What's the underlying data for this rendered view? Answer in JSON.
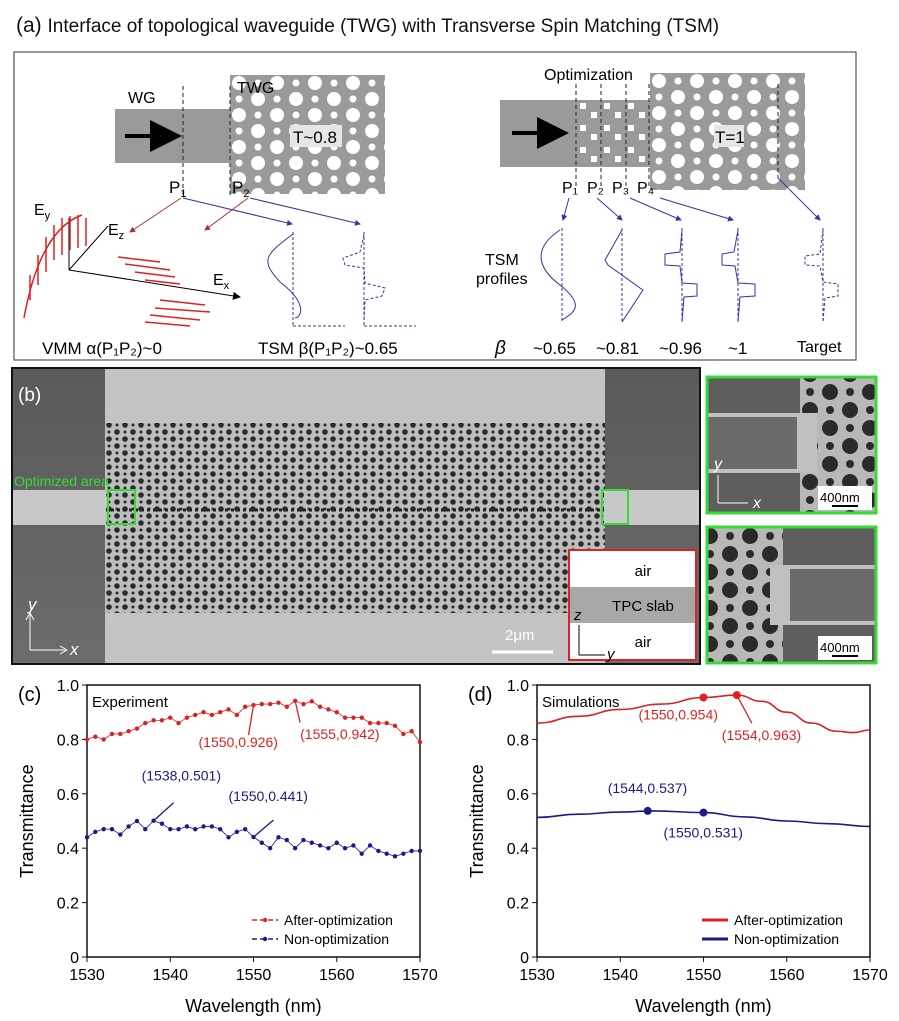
{
  "panel_a": {
    "label": "(a)",
    "title": "Interface of topological waveguide (TWG) with Transverse Spin Matching (TSM)",
    "left": {
      "wg_label": "WG",
      "twg_label": "TWG",
      "transmission": "T~0.8",
      "p1": "P",
      "p1_sub": "1",
      "p2": "P",
      "p2_sub": "2",
      "ey": "E",
      "ey_sub": "y",
      "ez": "E",
      "ez_sub": "z",
      "ex": "E",
      "ex_sub": "x",
      "vmm": "VMM α(P₁P₂)~0",
      "tsm": "TSM β(P₁P₂)~0.65"
    },
    "right": {
      "optimization_label": "Optimization",
      "transmission": "T=1",
      "ports": [
        "P₁",
        "P₂",
        "P₃",
        "P₄"
      ],
      "tsm_profiles": [
        "TSM",
        "profiles"
      ],
      "beta_symbol": "β",
      "beta_values": [
        "~0.65",
        "~0.81",
        "~0.96",
        "~1"
      ],
      "target_label": "Target"
    }
  },
  "panel_b": {
    "label": "(b)",
    "optimized_area_label": "Optimized area",
    "axis_y": "y",
    "axis_x": "x",
    "scale_bar": "2μm",
    "cross_section": {
      "top": "air",
      "middle": "TPC slab",
      "bottom": "air",
      "axis_z": "z",
      "axis_y": "y"
    },
    "inset_top": {
      "scale_bar": "400nm",
      "axis_y": "y",
      "axis_x": "x"
    },
    "inset_bottom": {
      "scale_bar": "400nm"
    },
    "colors": {
      "highlight": "#33dd33",
      "cross_section_border": "#dd2222"
    }
  },
  "chart_data": [
    {
      "panel": "(c)",
      "type": "scatter",
      "title": "Experiment",
      "xlabel": "Wavelength (nm)",
      "ylabel": "Transmittance",
      "xlim": [
        1530,
        1570
      ],
      "ylim": [
        0,
        1.0
      ],
      "xticks": [
        "1530",
        "1540",
        "1550",
        "1560",
        "1570"
      ],
      "yticks": [
        "0",
        "0.2",
        "0.4",
        "0.6",
        "0.8",
        "1.0"
      ],
      "legend": "bottom-right",
      "x": [
        1530,
        1531,
        1532,
        1533,
        1534,
        1535,
        1536,
        1537,
        1538,
        1539,
        1540,
        1541,
        1542,
        1543,
        1544,
        1545,
        1546,
        1547,
        1548,
        1549,
        1550,
        1551,
        1552,
        1553,
        1554,
        1555,
        1556,
        1557,
        1558,
        1559,
        1560,
        1561,
        1562,
        1563,
        1564,
        1565,
        1566,
        1567,
        1568,
        1569,
        1570
      ],
      "series": [
        {
          "name": "After-optimization",
          "color": "#e02020",
          "style": "dashed-dots",
          "values": [
            0.8,
            0.81,
            0.8,
            0.82,
            0.82,
            0.83,
            0.84,
            0.86,
            0.87,
            0.87,
            0.88,
            0.86,
            0.88,
            0.89,
            0.9,
            0.89,
            0.9,
            0.91,
            0.89,
            0.92,
            0.926,
            0.93,
            0.93,
            0.935,
            0.92,
            0.942,
            0.93,
            0.94,
            0.92,
            0.91,
            0.9,
            0.88,
            0.88,
            0.88,
            0.86,
            0.86,
            0.86,
            0.85,
            0.82,
            0.83,
            0.79
          ]
        },
        {
          "name": "Non-optimization",
          "color": "#1a1a8c",
          "style": "dashed-dots",
          "values": [
            0.44,
            0.46,
            0.47,
            0.47,
            0.45,
            0.48,
            0.5,
            0.47,
            0.501,
            0.49,
            0.47,
            0.47,
            0.48,
            0.47,
            0.48,
            0.48,
            0.47,
            0.44,
            0.46,
            0.47,
            0.441,
            0.42,
            0.4,
            0.44,
            0.43,
            0.4,
            0.43,
            0.42,
            0.41,
            0.4,
            0.42,
            0.4,
            0.41,
            0.38,
            0.41,
            0.39,
            0.38,
            0.37,
            0.38,
            0.39,
            0.39
          ]
        }
      ],
      "annotations": [
        {
          "text": "(1550,0.926)",
          "x": 1550,
          "y": 0.926,
          "color": "#e02020"
        },
        {
          "text": "(1555,0.942)",
          "x": 1555,
          "y": 0.942,
          "color": "#e02020"
        },
        {
          "text": "(1538,0.501)",
          "x": 1538,
          "y": 0.501,
          "color": "#1a1a8c"
        },
        {
          "text": "(1550,0.441)",
          "x": 1550,
          "y": 0.441,
          "color": "#1a1a8c"
        }
      ]
    },
    {
      "panel": "(d)",
      "type": "line",
      "title": "Simulations",
      "xlabel": "Wavelength (nm)",
      "ylabel": "Transmittance",
      "xlim": [
        1530,
        1570
      ],
      "ylim": [
        0,
        1.0
      ],
      "xticks": [
        "1530",
        "1540",
        "1550",
        "1560",
        "1570"
      ],
      "yticks": [
        "0",
        "0.2",
        "0.4",
        "0.6",
        "0.8",
        "1.0"
      ],
      "legend": "bottom-right",
      "series": [
        {
          "name": "After-optimization",
          "color": "#e02020",
          "x": [
            1530,
            1535,
            1540,
            1545,
            1550,
            1554,
            1557,
            1560,
            1563,
            1566,
            1568,
            1570
          ],
          "values": [
            0.86,
            0.885,
            0.91,
            0.93,
            0.954,
            0.963,
            0.94,
            0.9,
            0.86,
            0.83,
            0.825,
            0.835
          ]
        },
        {
          "name": "Non-optimization",
          "color": "#1a1a8c",
          "x": [
            1530,
            1535,
            1540,
            1544,
            1550,
            1555,
            1560,
            1565,
            1570
          ],
          "values": [
            0.513,
            0.525,
            0.533,
            0.537,
            0.531,
            0.515,
            0.5,
            0.49,
            0.48
          ]
        }
      ],
      "annotations": [
        {
          "text": "(1550,0.954)",
          "x": 1550,
          "y": 0.954,
          "color": "#e02020"
        },
        {
          "text": "(1554,0.963)",
          "x": 1554,
          "y": 0.963,
          "color": "#e02020"
        },
        {
          "text": "(1544,0.537)",
          "x": 1543.3,
          "y": 0.537,
          "color": "#1a1a8c"
        },
        {
          "text": "(1550,0.531)",
          "x": 1550,
          "y": 0.531,
          "color": "#1a1a8c"
        }
      ]
    }
  ]
}
